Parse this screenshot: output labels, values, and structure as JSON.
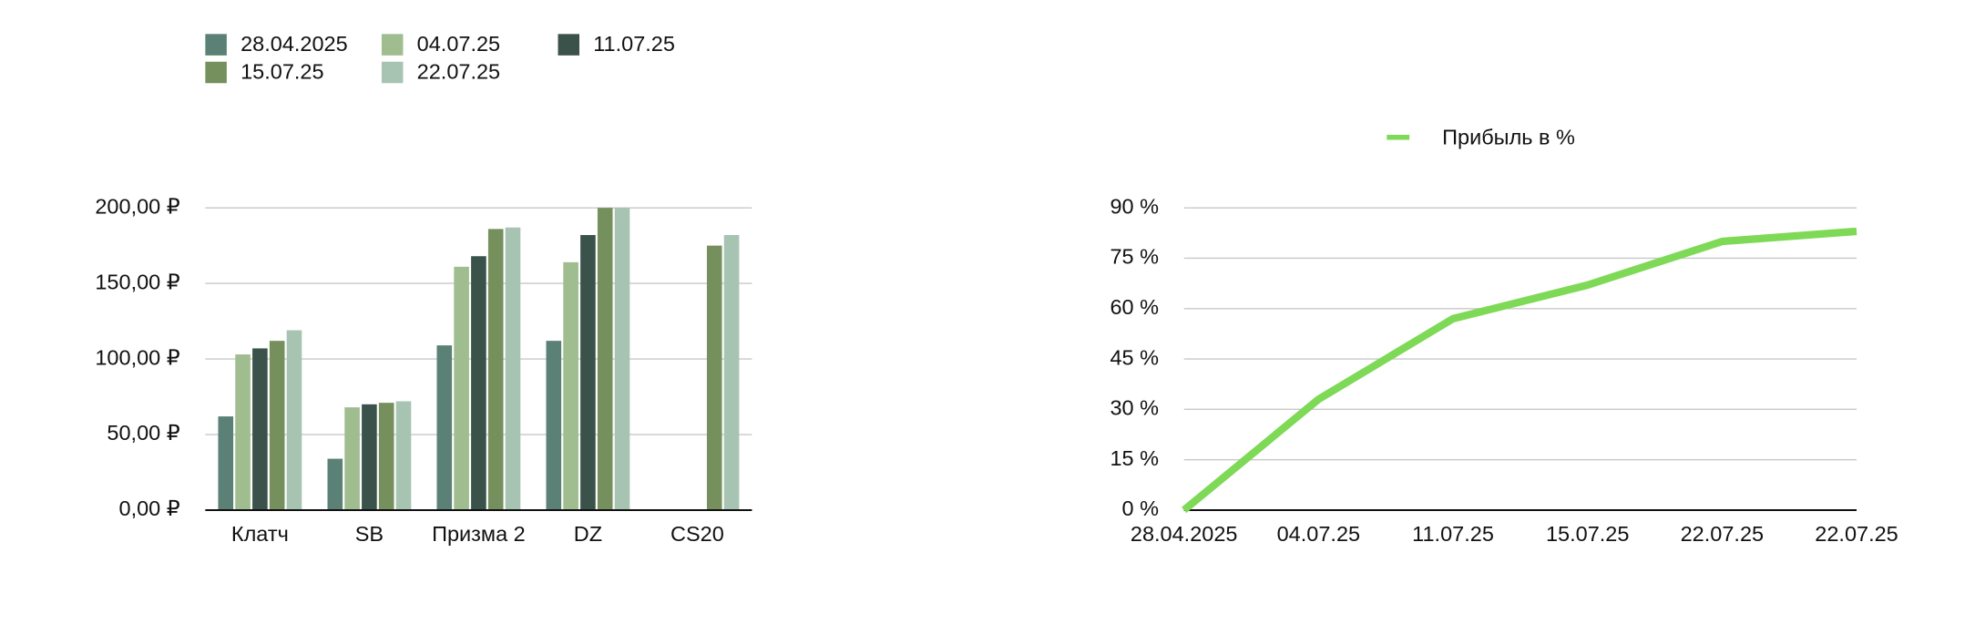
{
  "chart_data": [
    {
      "type": "bar",
      "categories": [
        "Клатч",
        "SB",
        "Призма 2",
        "DZ",
        "CS20"
      ],
      "series": [
        {
          "name": "28.04.2025",
          "color": "#5b8075",
          "values": [
            62,
            34,
            109,
            112,
            null
          ]
        },
        {
          "name": "04.07.25",
          "color": "#9fbd8e",
          "values": [
            103,
            68,
            161,
            164,
            null
          ]
        },
        {
          "name": "11.07.25",
          "color": "#3b524b",
          "values": [
            107,
            70,
            168,
            182,
            null
          ]
        },
        {
          "name": "15.07.25",
          "color": "#758f5d",
          "values": [
            112,
            71,
            186,
            200,
            175
          ]
        },
        {
          "name": "22.07.25",
          "color": "#a7c4b2",
          "values": [
            119,
            72,
            187,
            200,
            182
          ]
        }
      ],
      "ylim": [
        0,
        200
      ],
      "yticks": [
        {
          "value": 0,
          "label": "0,00 ₽"
        },
        {
          "value": 50,
          "label": "50,00 ₽"
        },
        {
          "value": 100,
          "label": "100,00 ₽"
        },
        {
          "value": 150,
          "label": "150,00 ₽"
        },
        {
          "value": 200,
          "label": "200,00 ₽"
        }
      ],
      "grid": true
    },
    {
      "type": "line",
      "categories": [
        "28.04.2025",
        "04.07.25",
        "11.07.25",
        "15.07.25",
        "22.07.25",
        "22.07.25"
      ],
      "series": [
        {
          "name": "Прибыль в %",
          "color": "#7ed957",
          "values": [
            0,
            33,
            57,
            67,
            80,
            83
          ]
        }
      ],
      "ylim": [
        0,
        90
      ],
      "yticks": [
        {
          "value": 0,
          "label": "0 %"
        },
        {
          "value": 15,
          "label": "15 %"
        },
        {
          "value": 30,
          "label": "30 %"
        },
        {
          "value": 45,
          "label": "45 %"
        },
        {
          "value": 60,
          "label": "60 %"
        },
        {
          "value": 75,
          "label": "75 %"
        },
        {
          "value": 90,
          "label": "90 %"
        }
      ],
      "grid": true
    }
  ]
}
